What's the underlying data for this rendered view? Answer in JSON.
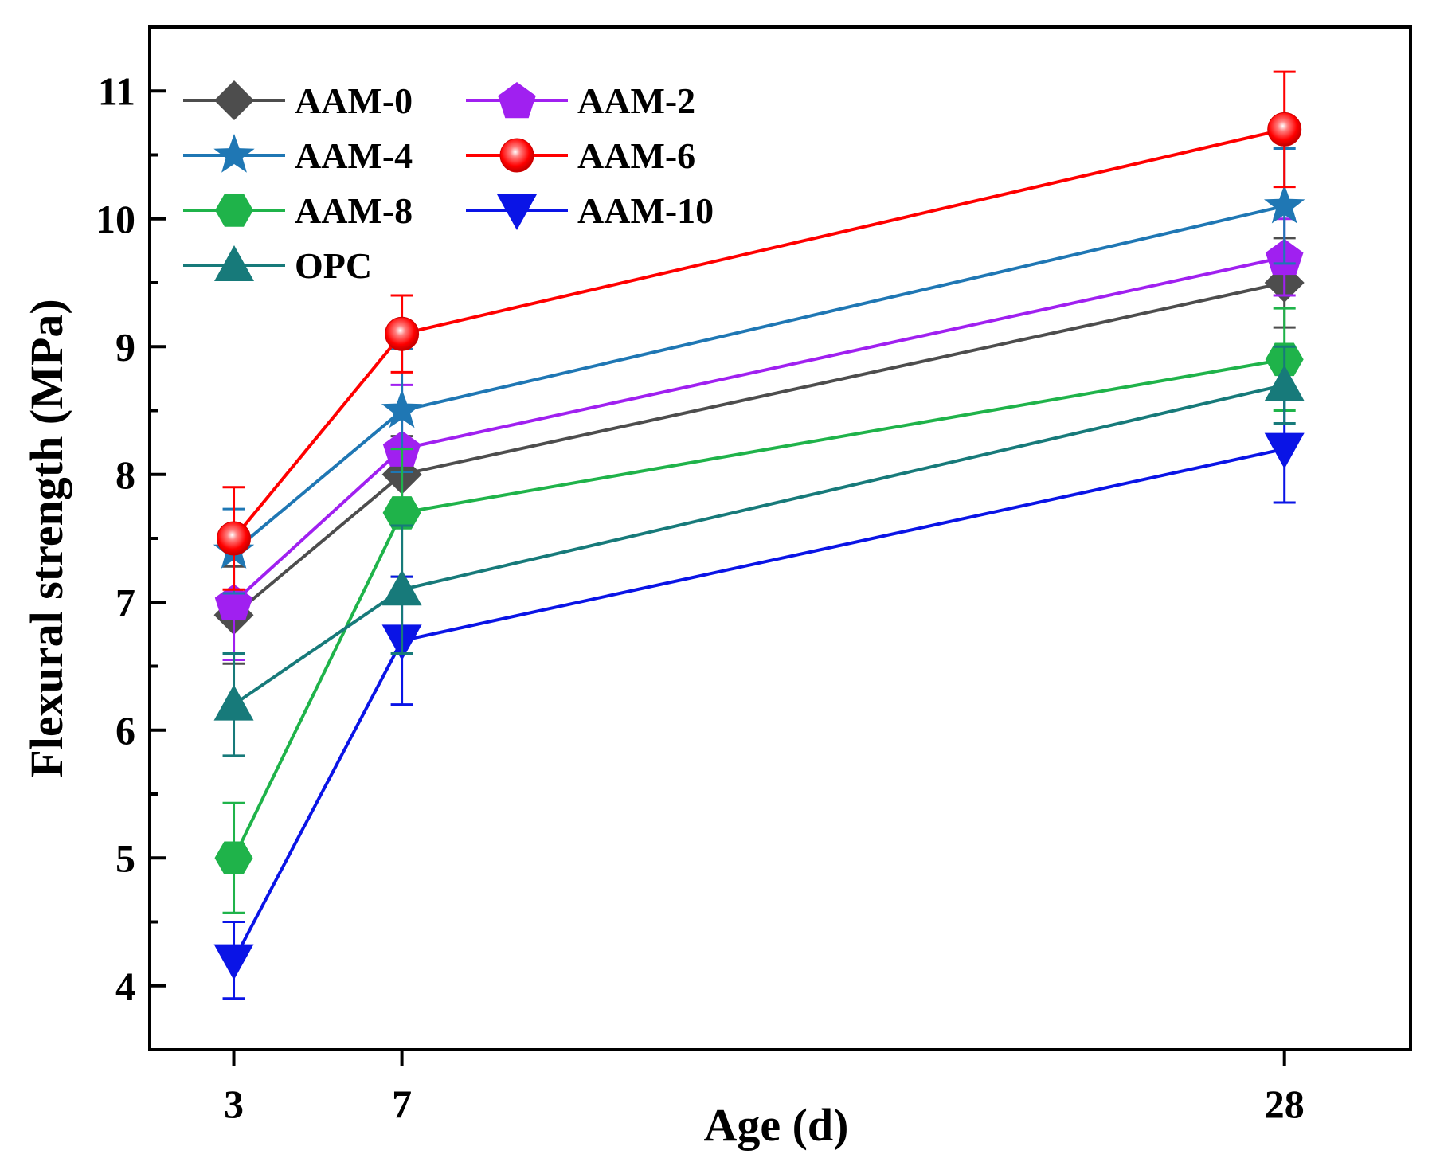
{
  "chart_data": {
    "type": "line",
    "title": "",
    "xlabel": "Age (d)",
    "ylabel": "Flexural strength (MPa)",
    "x": [
      3,
      7,
      28
    ],
    "x_tick_labels": [
      "3",
      "7",
      "28"
    ],
    "xlim": [
      1,
      31
    ],
    "ylim": [
      3.5,
      11.5
    ],
    "y_ticks": [
      4,
      5,
      6,
      7,
      8,
      9,
      10,
      11
    ],
    "y_tick_labels": [
      "4",
      "5",
      "6",
      "7",
      "8",
      "9",
      "10",
      "11"
    ],
    "grid": false,
    "legend_position": "top-left",
    "series": [
      {
        "name": "AAM-0",
        "marker": "diamond",
        "color": "#4d4d4d",
        "values": [
          6.9,
          8.0,
          9.5
        ],
        "errors": [
          0.38,
          0.3,
          0.35
        ]
      },
      {
        "name": "AAM-2",
        "marker": "pentagon",
        "color": "#a020f0",
        "values": [
          7.0,
          8.2,
          9.7
        ],
        "errors": [
          0.45,
          0.5,
          0.3
        ]
      },
      {
        "name": "AAM-4",
        "marker": "star",
        "color": "#1f77b4",
        "values": [
          7.4,
          8.5,
          10.1
        ],
        "errors": [
          0.33,
          0.48,
          0.45
        ]
      },
      {
        "name": "AAM-6",
        "marker": "circle",
        "color": "#ff0000",
        "values": [
          7.5,
          9.1,
          10.7
        ],
        "errors": [
          0.4,
          0.3,
          0.45
        ]
      },
      {
        "name": "AAM-8",
        "marker": "hexagon",
        "color": "#1fb34a",
        "values": [
          5.0,
          7.7,
          8.9
        ],
        "errors": [
          0.43,
          0.5,
          0.4
        ]
      },
      {
        "name": "AAM-10",
        "marker": "triangle-down",
        "color": "#0a14e6",
        "values": [
          4.2,
          6.7,
          8.2
        ],
        "errors": [
          0.3,
          0.5,
          0.42
        ]
      },
      {
        "name": "OPC",
        "marker": "triangle-up",
        "color": "#177a7a",
        "values": [
          6.2,
          7.1,
          8.7
        ],
        "errors": [
          0.4,
          0.5,
          0.3
        ]
      }
    ]
  }
}
